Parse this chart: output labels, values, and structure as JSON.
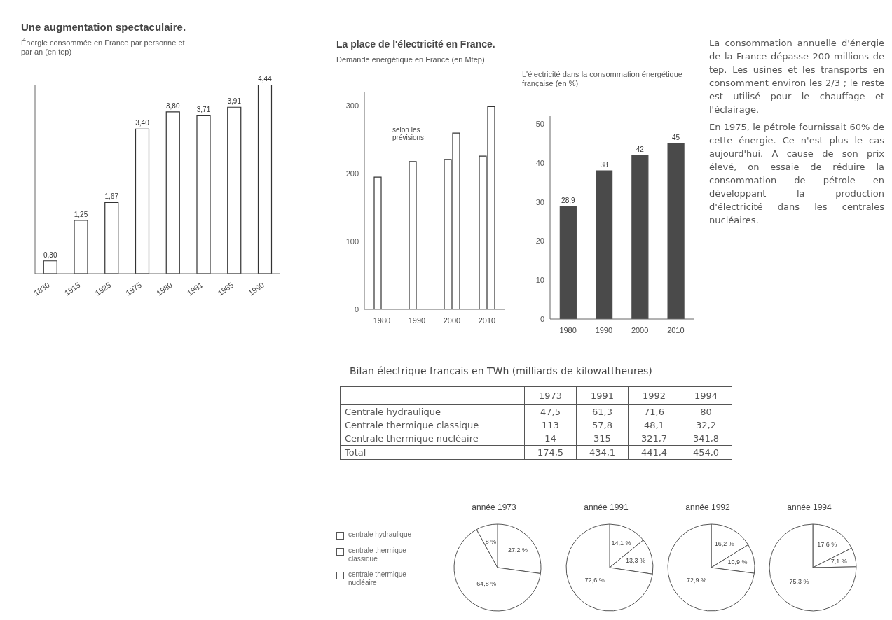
{
  "chart_data": [
    {
      "type": "bar",
      "title": "Une augmentation spectaculaire.",
      "subtitle": "Énergie consommée en France par personne et par an (en tep)",
      "categories": [
        "1830",
        "1915",
        "1925",
        "1975",
        "1980",
        "1981",
        "1985",
        "1990"
      ],
      "values": [
        0.3,
        1.25,
        1.67,
        3.4,
        3.8,
        3.71,
        3.91,
        4.44
      ],
      "value_labels": [
        "0,30",
        "1,25",
        "1,67",
        "3,40",
        "3,80",
        "3,71",
        "3,91",
        "4,44"
      ],
      "color": "#ffffff"
    },
    {
      "type": "bar",
      "title": "La place de l'électricité en France.",
      "subtitle": "Demande energétique en France (en Mtep)",
      "categories": [
        "1980",
        "1990",
        "2000",
        "2010"
      ],
      "series": [
        {
          "color": "#ffffff",
          "values": [
            195,
            218,
            221,
            226
          ]
        },
        {
          "color": "#ffffff",
          "values": [
            null,
            null,
            260,
            299
          ]
        }
      ],
      "ylim": [
        0,
        320
      ],
      "yticks": [
        0,
        100,
        200,
        300
      ],
      "annotations": [
        "selon les prévisions"
      ]
    },
    {
      "type": "bar",
      "subtitle": "L'électricité dans la consommation énergétique française (en %)",
      "categories": [
        "1980",
        "1990",
        "2000",
        "2010"
      ],
      "values": [
        28.9,
        38,
        42,
        45
      ],
      "value_labels": [
        "28,9",
        "38",
        "42",
        "45"
      ],
      "color": "#4a4a4a",
      "ylim": [
        0,
        52
      ],
      "yticks": [
        0,
        10,
        20,
        30,
        40,
        50
      ]
    },
    {
      "type": "other",
      "annotations": [
        "La consommation annuelle d'énergie de la France dépasse 200 millions de tep. Les usines et les transports en consomment environ les 2/3 ; le reste est utilisé pour le chauffage et l'éclairage.",
        "En 1975, le pétrole fournissait 60% de cette énergie. Ce n'est plus le cas aujourd'hui. A cause de son prix élevé, on essaie de réduire la consommation de pétrole en développant la production d'électricité dans les centrales nucléaires."
      ]
    },
    {
      "type": "other",
      "title": "Bilan électrique français en TWh (milliards de kilowattheures)",
      "categories": [
        "1973",
        "1991",
        "1992",
        "1994"
      ],
      "series": [
        {
          "name": "Centrale hydraulique",
          "values": [
            47.5,
            61.3,
            71.6,
            80
          ],
          "value_labels": [
            "47,5",
            "61,3",
            "71,6",
            "80"
          ]
        },
        {
          "name": "Centrale thermique classique",
          "values": [
            113,
            57.8,
            48.1,
            32.2
          ],
          "value_labels": [
            "113",
            "57,8",
            "48,1",
            "32,2"
          ]
        },
        {
          "name": "Centrale thermique nucléaire",
          "values": [
            14,
            315,
            321.7,
            341.8
          ],
          "value_labels": [
            "14",
            "315",
            "321,7",
            "341,8"
          ]
        },
        {
          "name": "Total",
          "values": [
            174.5,
            434.1,
            441.4,
            454.0
          ],
          "value_labels": [
            "174,5",
            "434,1",
            "441,4",
            "454,0"
          ]
        }
      ]
    },
    {
      "type": "pie",
      "title": "année 1973",
      "categories": [
        "centrale hydraulique",
        "centrale thermique classique",
        "centrale thermique nucléaire"
      ],
      "values": [
        27.2,
        64.8,
        8
      ],
      "value_labels": [
        "27,2 %",
        "64,8 %",
        "8 %"
      ],
      "colors": [
        "#ffffff",
        "#ffffff",
        "#ffffff"
      ],
      "legend": "left"
    },
    {
      "type": "pie",
      "title": "année 1991",
      "categories": [
        null,
        null,
        null
      ],
      "values": [
        14.1,
        13.3,
        72.6
      ],
      "value_labels": [
        "14,1 %",
        "13,3 %",
        "72,6 %"
      ],
      "colors": [
        "#ffffff",
        "#ffffff",
        "#ffffff"
      ]
    },
    {
      "type": "pie",
      "title": "année 1992",
      "categories": [
        null,
        null,
        null
      ],
      "values": [
        16.2,
        10.9,
        72.9
      ],
      "value_labels": [
        "16,2 %",
        "10,9 %",
        "72,9 %"
      ],
      "colors": [
        "#ffffff",
        "#ffffff",
        "#ffffff"
      ]
    },
    {
      "type": "pie",
      "title": "année 1994",
      "categories": [
        null,
        null,
        null
      ],
      "values": [
        17.6,
        7.1,
        75.3
      ],
      "value_labels": [
        "17,6 %",
        "7,1 %",
        "75,3 %"
      ],
      "colors": [
        "#ffffff",
        "#ffffff",
        "#ffffff"
      ]
    }
  ]
}
